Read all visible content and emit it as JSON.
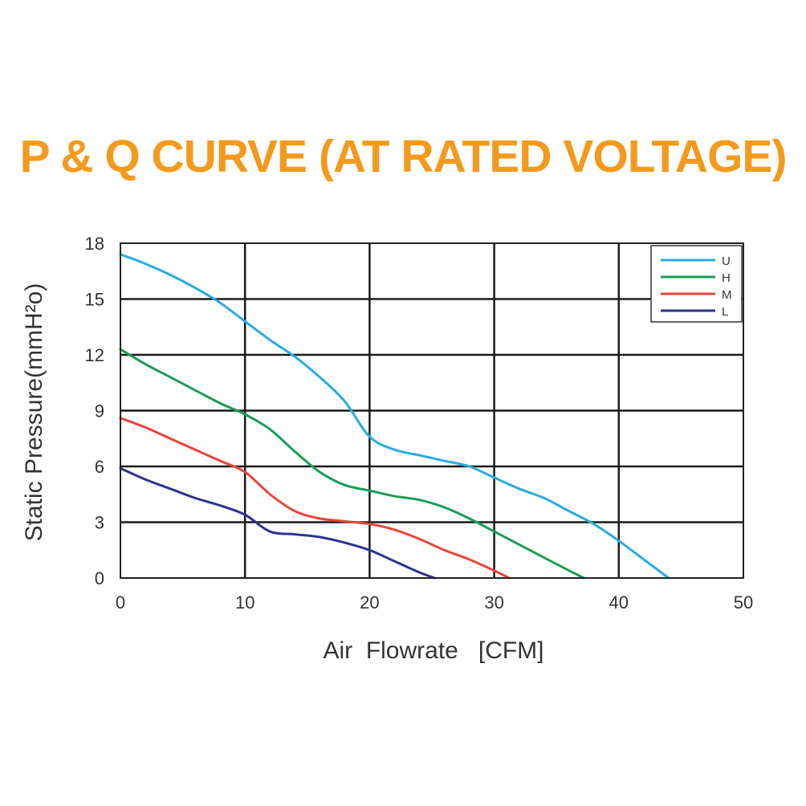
{
  "chart_data": {
    "type": "line",
    "title": "P & Q CURVE (AT RATED VOLTAGE)",
    "title_color": "#f39a1e",
    "xlabel": "Air  Flowrate   [CFM]",
    "ylabel": "Static Pressure(mmH²o)",
    "xlim": [
      0,
      50
    ],
    "ylim": [
      0,
      18
    ],
    "xticks": [
      0,
      10,
      20,
      30,
      40,
      50
    ],
    "yticks": [
      0,
      3,
      6,
      9,
      12,
      15,
      18
    ],
    "grid": true,
    "legend_position": "top-right",
    "series": [
      {
        "name": "U",
        "color": "#29abe2",
        "x": [
          0,
          2,
          4,
          6,
          8,
          10,
          12,
          14,
          16,
          18,
          20,
          22,
          24,
          26,
          28,
          30,
          32,
          34,
          36,
          38,
          40,
          42,
          44
        ],
        "y": [
          17.4,
          16.9,
          16.3,
          15.6,
          14.8,
          13.8,
          12.8,
          11.9,
          10.8,
          9.5,
          7.6,
          6.9,
          6.6,
          6.3,
          6.0,
          5.4,
          4.8,
          4.3,
          3.6,
          2.9,
          2.0,
          1.0,
          0
        ]
      },
      {
        "name": "H",
        "color": "#1a9c5a",
        "x": [
          0,
          2,
          4,
          6,
          8,
          10,
          12,
          14,
          16,
          18,
          20,
          22,
          24,
          26,
          28,
          30,
          32,
          34,
          36,
          37.2
        ],
        "y": [
          12.3,
          11.5,
          10.8,
          10.1,
          9.4,
          8.8,
          8.0,
          6.8,
          5.7,
          5.0,
          4.7,
          4.4,
          4.2,
          3.8,
          3.2,
          2.5,
          1.8,
          1.1,
          0.4,
          0
        ]
      },
      {
        "name": "M",
        "color": "#e8443a",
        "x": [
          0,
          2,
          4,
          6,
          8,
          10,
          12,
          14,
          16,
          18,
          20,
          22,
          24,
          26,
          28,
          30,
          31.2
        ],
        "y": [
          8.6,
          8.1,
          7.5,
          6.9,
          6.3,
          5.7,
          4.5,
          3.6,
          3.2,
          3.05,
          2.9,
          2.6,
          2.1,
          1.5,
          1.0,
          0.4,
          0
        ]
      },
      {
        "name": "L",
        "color": "#2e3192",
        "x": [
          0,
          2,
          4,
          6,
          8,
          10,
          12,
          14,
          16,
          18,
          20,
          22,
          24,
          25.2
        ],
        "y": [
          5.9,
          5.3,
          4.8,
          4.3,
          3.9,
          3.4,
          2.5,
          2.35,
          2.2,
          1.9,
          1.5,
          0.9,
          0.3,
          0
        ]
      }
    ]
  }
}
